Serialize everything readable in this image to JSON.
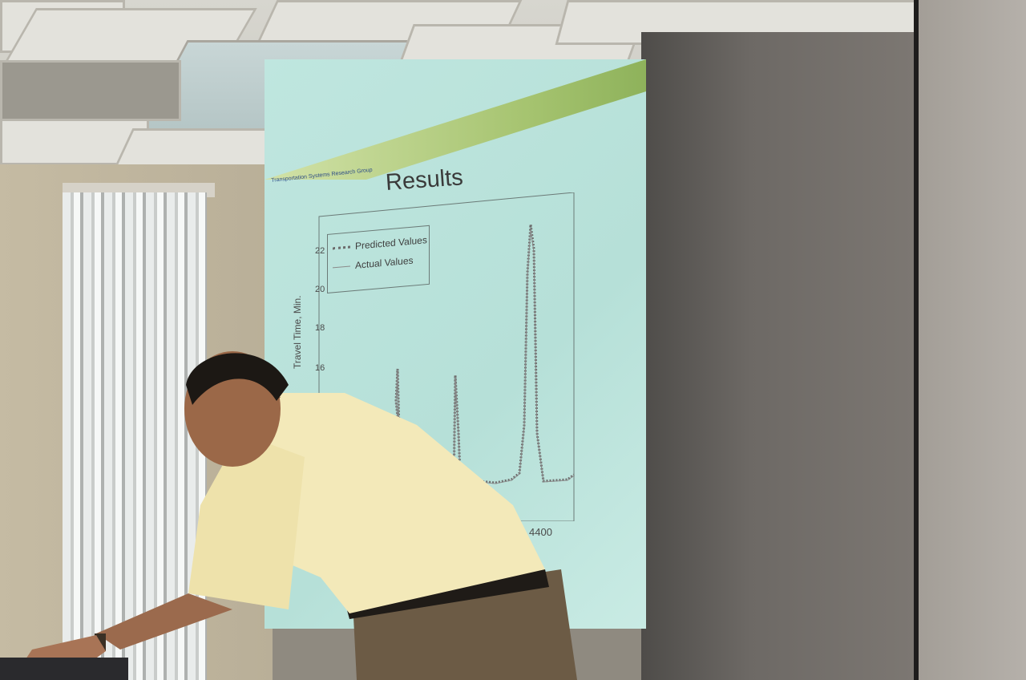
{
  "slide": {
    "logo_text": "Transportation Systems Research Group",
    "title": "Results"
  },
  "chart_data": {
    "type": "line",
    "title": "Results",
    "xlabel": "",
    "ylabel": "Travel Time, Min.",
    "yticks": [
      "16",
      "18",
      "20",
      "22"
    ],
    "xticks": [
      "4400"
    ],
    "legend": [
      "Predicted Values",
      "Actual Values"
    ],
    "legend_placement": "top-left",
    "series": [
      {
        "name": "Predicted Values",
        "style": "dotted"
      },
      {
        "name": "Actual Values",
        "style": "solid"
      }
    ]
  },
  "colors": {
    "slide_background": "#bfe6df",
    "header_band": "#a5c36f",
    "shirt": "#f3e9b9",
    "trousers": "#6c5b45"
  }
}
